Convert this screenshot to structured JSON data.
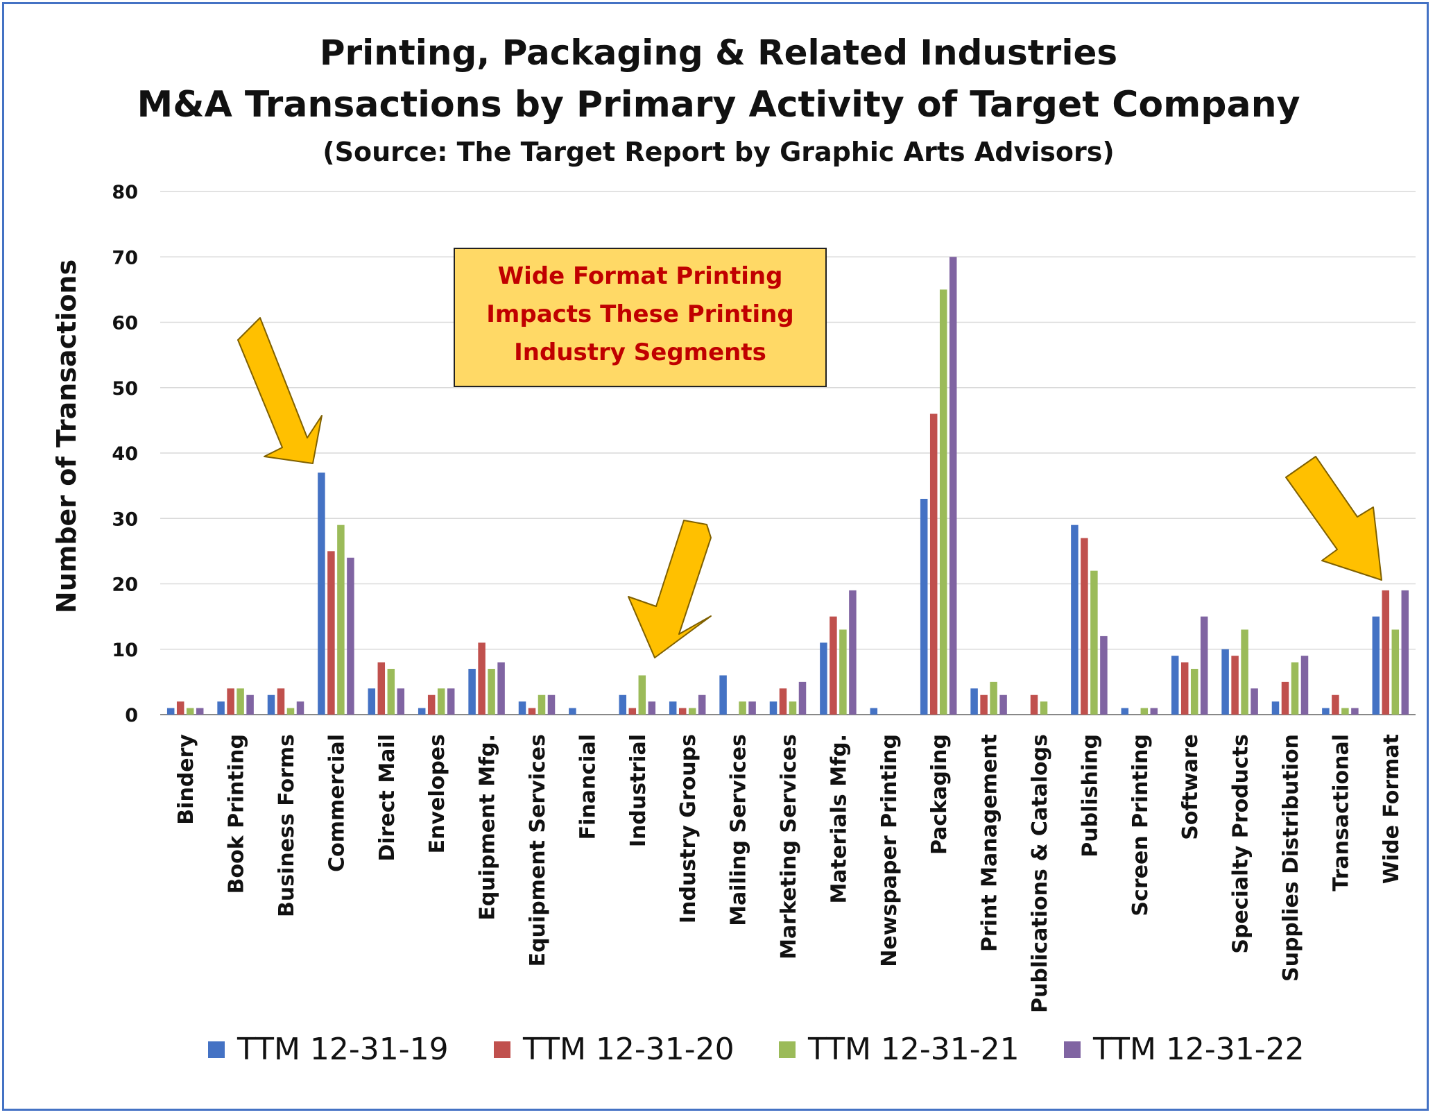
{
  "chart_data": {
    "type": "bar",
    "title": "Printing, Packaging & Related Industries",
    "subtitle": "M&A Transactions by Primary Activity of Target Company",
    "source": "(Source: The Target Report by Graphic Arts Advisors)",
    "xlabel": "",
    "ylabel": "Number of Transactions",
    "ylim": [
      0,
      80
    ],
    "yticks": [
      0,
      10,
      20,
      30,
      40,
      50,
      60,
      70,
      80
    ],
    "grid": true,
    "legend_position": "bottom",
    "categories": [
      "Bindery",
      "Book Printing",
      "Business Forms",
      "Commercial",
      "Direct Mail",
      "Envelopes",
      "Equipment Mfg.",
      "Equipment Services",
      "Financial",
      "Industrial",
      "Industry Groups",
      "Mailing Services",
      "Marketing Services",
      "Materials Mfg.",
      "Newspaper Printing",
      "Packaging",
      "Print Management",
      "Publications & Catalogs",
      "Publishing",
      "Screen Printing",
      "Software",
      "Specialty Products",
      "Supplies Distribution",
      "Transactional",
      "Wide Format"
    ],
    "series": [
      {
        "name": "TTM 12-31-19",
        "color": "#4472c4",
        "values": [
          1,
          2,
          3,
          37,
          4,
          1,
          7,
          2,
          1,
          3,
          2,
          6,
          2,
          11,
          1,
          33,
          4,
          0,
          29,
          1,
          9,
          10,
          2,
          1,
          15
        ]
      },
      {
        "name": "TTM 12-31-20",
        "color": "#c0504d",
        "values": [
          2,
          4,
          4,
          25,
          8,
          3,
          11,
          1,
          0,
          1,
          1,
          0,
          4,
          15,
          0,
          46,
          3,
          3,
          27,
          0,
          8,
          9,
          5,
          3,
          19
        ]
      },
      {
        "name": "TTM 12-31-21",
        "color": "#9bbb59",
        "values": [
          1,
          4,
          1,
          29,
          7,
          4,
          7,
          3,
          0,
          6,
          1,
          2,
          2,
          13,
          0,
          65,
          5,
          2,
          22,
          1,
          7,
          13,
          8,
          1,
          13
        ]
      },
      {
        "name": "TTM 12-31-22",
        "color": "#8064a2",
        "values": [
          1,
          3,
          2,
          24,
          4,
          4,
          8,
          3,
          0,
          2,
          3,
          2,
          5,
          19,
          0,
          70,
          3,
          0,
          12,
          1,
          15,
          4,
          9,
          1,
          19
        ]
      }
    ],
    "annotations": {
      "callout_lines": [
        "Wide Format Printing",
        "Impacts These Printing",
        "Industry Segments"
      ],
      "arrow_targets": [
        "Commercial",
        "Industrial",
        "Wide Format"
      ],
      "arrow_color": "#ffc000",
      "callout_fill": "#ffd966",
      "callout_text_color": "#c00000"
    }
  }
}
